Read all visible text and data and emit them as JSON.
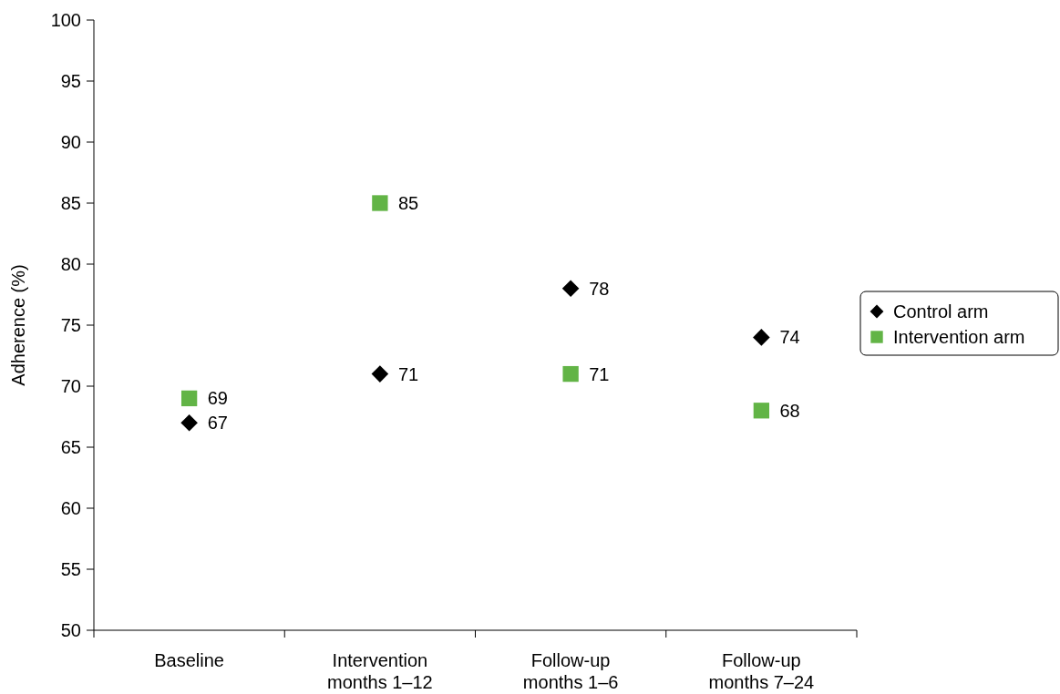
{
  "chart_data": {
    "type": "scatter",
    "ylabel": "Adherence (%)",
    "categories": [
      "Baseline",
      "Intervention\nmonths 1–12",
      "Follow-up\nmonths 1–6",
      "Follow-up\nmonths 7–24"
    ],
    "series": [
      {
        "name": "Control arm",
        "color": "#000000",
        "marker": "diamond",
        "values": [
          67,
          71,
          78,
          74
        ]
      },
      {
        "name": "Intervention arm",
        "color": "#62b446",
        "marker": "square",
        "values": [
          69,
          85,
          71,
          68
        ]
      }
    ],
    "ylim": [
      50,
      100
    ],
    "yticks": [
      50,
      55,
      60,
      65,
      70,
      75,
      80,
      85,
      90,
      95,
      100
    ],
    "data_labels": true,
    "legend": "right",
    "grid": false
  }
}
